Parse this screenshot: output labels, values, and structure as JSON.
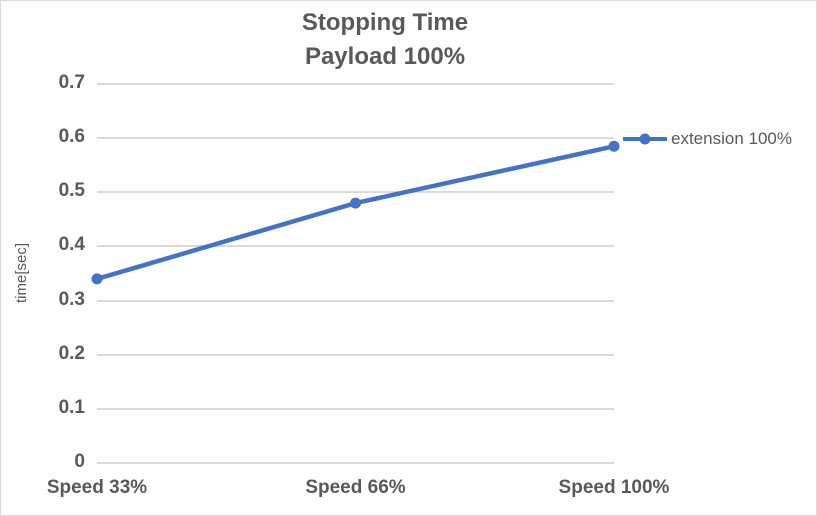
{
  "chart_data": {
    "type": "line",
    "title": "Stopping Time",
    "subtitle": "Payload 100%",
    "categories": [
      "Speed 33%",
      "Speed 66%",
      "Speed 100%"
    ],
    "series": [
      {
        "name": "extension 100%",
        "values": [
          0.34,
          0.48,
          0.585
        ]
      }
    ],
    "xlabel": "",
    "ylabel": "time[sec]",
    "ylim": [
      0,
      0.7
    ],
    "ytick_step": 0.1,
    "ytick_labels": [
      "0",
      "0.1",
      "0.2",
      "0.3",
      "0.4",
      "0.5",
      "0.6",
      "0.7"
    ],
    "grid": true,
    "legend_position": "right",
    "marker": "circle",
    "colors": {
      "series": "#4472C4",
      "gridline": "#D9D9D9",
      "text": "#595959",
      "border": "#D9D9D9",
      "background": "#FFFFFF"
    }
  }
}
